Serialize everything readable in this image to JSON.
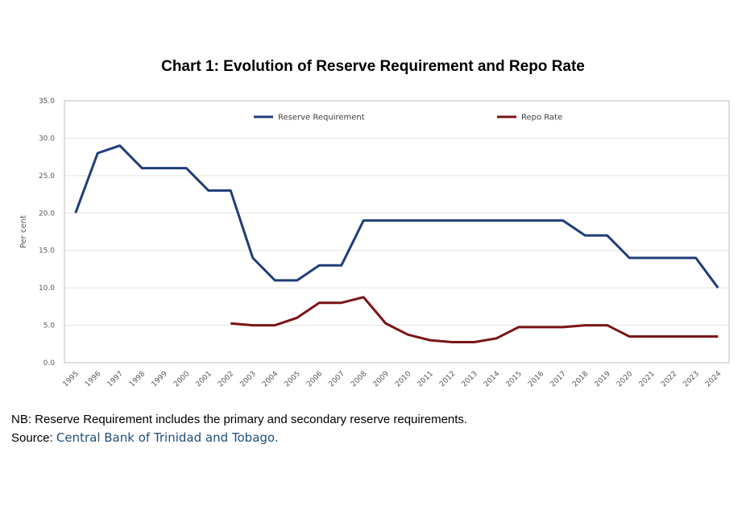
{
  "chart_data": {
    "type": "line",
    "title": "Chart 1: Evolution of Reserve Requirement and Repo Rate",
    "ylabel": "Per cent",
    "xlabel": "",
    "ylim": [
      0,
      35
    ],
    "yticks": [
      "0.0",
      "5.0",
      "10.0",
      "15.0",
      "20.0",
      "25.0",
      "30.0",
      "35.0"
    ],
    "grid": true,
    "legend_position": "top",
    "x": [
      "1995",
      "1996",
      "1997",
      "1998",
      "1999",
      "2000",
      "2001",
      "2002",
      "2003",
      "2004",
      "2005",
      "2006",
      "2007",
      "2008",
      "2009",
      "2010",
      "2011",
      "2012",
      "2013",
      "2014",
      "2015",
      "2016",
      "2017",
      "2018",
      "2019",
      "2020",
      "2021",
      "2022",
      "2023",
      "2024"
    ],
    "series": [
      {
        "name": "Reserve Requirement",
        "color": "#1f3d7a",
        "values": [
          20,
          28,
          29,
          26,
          26,
          26,
          23,
          23,
          14,
          11,
          11,
          13,
          13,
          19,
          19,
          19,
          19,
          19,
          19,
          19,
          19,
          19,
          19,
          17,
          17,
          14,
          14,
          14,
          14,
          10
        ]
      },
      {
        "name": "Repo Rate",
        "color": "#7b1416",
        "values": [
          null,
          null,
          null,
          null,
          null,
          null,
          null,
          5.25,
          5.0,
          5.0,
          6.0,
          8.0,
          8.0,
          8.75,
          5.25,
          3.75,
          3.0,
          2.75,
          2.75,
          3.25,
          4.75,
          4.75,
          4.75,
          5.0,
          5.0,
          3.5,
          3.5,
          3.5,
          3.5,
          3.5
        ]
      }
    ]
  },
  "footer": {
    "note": "NB: Reserve Requirement includes the primary and secondary reserve requirements.",
    "source_label": "Source: ",
    "source_name": "Central Bank of Trinidad and Tobago."
  }
}
